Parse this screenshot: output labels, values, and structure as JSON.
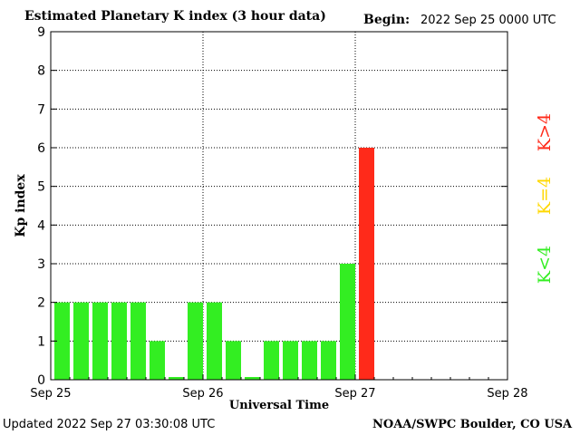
{
  "header": {
    "title": "Estimated Planetary K index (3 hour data)",
    "begin_label": "Begin:",
    "begin_value": "2022 Sep 25 0000 UTC"
  },
  "footer": {
    "updated": "Updated 2022 Sep 27 03:30:08 UTC",
    "credit": "NOAA/SWPC Boulder, CO USA"
  },
  "legend": [
    {
      "label": "K<4",
      "color": "#33ee22"
    },
    {
      "label": "K=4",
      "color": "#ffd800"
    },
    {
      "label": "K>4",
      "color": "#ff2a1a"
    }
  ],
  "chart_data": {
    "type": "bar",
    "title": "Estimated Planetary K index (3 hour data)",
    "xlabel": "Universal Time",
    "ylabel": "Kp index",
    "ylim": [
      0,
      9
    ],
    "yticks": [
      0,
      1,
      2,
      3,
      4,
      5,
      6,
      7,
      8,
      9
    ],
    "xticks": [
      "Sep 25",
      "Sep 26",
      "Sep 27",
      "Sep 28"
    ],
    "interval_hours": 3,
    "x": [
      "Sep 25 00",
      "Sep 25 03",
      "Sep 25 06",
      "Sep 25 09",
      "Sep 25 12",
      "Sep 25 15",
      "Sep 25 18",
      "Sep 25 21",
      "Sep 26 00",
      "Sep 26 03",
      "Sep 26 06",
      "Sep 26 09",
      "Sep 26 12",
      "Sep 26 15",
      "Sep 26 18",
      "Sep 26 21",
      "Sep 27 00"
    ],
    "values": [
      2,
      2,
      2,
      2,
      2,
      1,
      0.07,
      2,
      2,
      1,
      0.07,
      1,
      1,
      1,
      1,
      3,
      6
    ],
    "colors": {
      "below": "#33ee22",
      "equal": "#ffd800",
      "above": "#ff2a1a"
    },
    "grid": true
  }
}
